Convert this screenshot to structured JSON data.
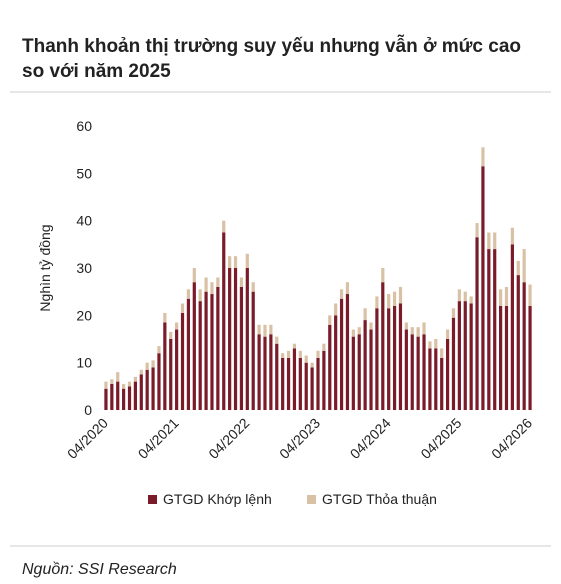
{
  "chart_data": {
    "type": "stacked_bar",
    "title": [
      "Thanh khoản thị trường suy yếu nhưng vẫn ở mức cao",
      "so với năm 2025"
    ],
    "ylabel": "Nghìn tỷ đồng",
    "source": "Nguồn: SSI Research",
    "categories": [
      "04/2020",
      null,
      null,
      null,
      null,
      null,
      null,
      null,
      null,
      null,
      null,
      null,
      "04/2021",
      null,
      null,
      null,
      null,
      null,
      null,
      null,
      null,
      null,
      null,
      null,
      "04/2022",
      null,
      null,
      null,
      null,
      null,
      null,
      null,
      null,
      null,
      null,
      null,
      "04/2023",
      null,
      null,
      null,
      null,
      null,
      null,
      null,
      null,
      null,
      null,
      null,
      "04/2024",
      null,
      null,
      null,
      null,
      null,
      null,
      null,
      null,
      null,
      null,
      null,
      "04/2025",
      null,
      null,
      null,
      null,
      null,
      null,
      null,
      null,
      null,
      null,
      null,
      "04/2026"
    ],
    "series": [
      {
        "name": "GTGD Khớp lệnh",
        "color": "#7a1b2a",
        "values": [
          4.5,
          5.5,
          6,
          4.5,
          5,
          6,
          7.5,
          8.5,
          9,
          12,
          18.5,
          15,
          17,
          20.5,
          23.5,
          27,
          23,
          25,
          24.5,
          26,
          37.5,
          30,
          30,
          26,
          30,
          25,
          16,
          15.5,
          16,
          14,
          11,
          11,
          13,
          11,
          10,
          9,
          11,
          12.5,
          18,
          20,
          23.5,
          24.5,
          15.5,
          16,
          19,
          17,
          21.5,
          27,
          21.5,
          22,
          22.5,
          17,
          16,
          15.5,
          16,
          13,
          13,
          11,
          15,
          19.5,
          23,
          23,
          22.5,
          36.5,
          51.5,
          34,
          34,
          22,
          22,
          35,
          28.5,
          27,
          22
        ]
      },
      {
        "name": "GTGD Thỏa thuận",
        "color": "#d9c1a6",
        "values": [
          1.5,
          1,
          2,
          1,
          1,
          1,
          1,
          1.5,
          1.5,
          1.5,
          2,
          1.5,
          1.5,
          2,
          2,
          3,
          2.5,
          3,
          2.5,
          2,
          2.5,
          2.5,
          2.5,
          2,
          3,
          2,
          2,
          2.5,
          2,
          1.5,
          1,
          1.5,
          1,
          1.5,
          1.5,
          1,
          1.5,
          1.5,
          2,
          2.5,
          2,
          2.5,
          1.5,
          1.5,
          2.5,
          1.5,
          2.5,
          3,
          3,
          3,
          3.5,
          1.5,
          1.5,
          2,
          2.5,
          1.5,
          2,
          2,
          2,
          2,
          2.5,
          2,
          1.5,
          3,
          4,
          3.5,
          3.5,
          3.5,
          4,
          3.5,
          3,
          7,
          4.5
        ]
      }
    ],
    "ylim": [
      0,
      60
    ],
    "yticks": [
      0,
      10,
      20,
      30,
      40,
      50,
      60
    ],
    "grid": false,
    "legend": "bottom"
  }
}
